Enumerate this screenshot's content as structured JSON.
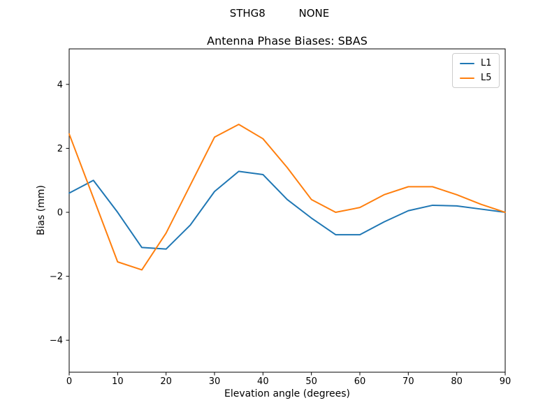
{
  "figure": {
    "suptitle": "STHG8          NONE"
  },
  "chart_data": {
    "type": "line",
    "title": "Antenna Phase Biases: SBAS",
    "xlabel": "Elevation angle (degrees)",
    "ylabel": "Bias (mm)",
    "xlim": [
      0,
      90
    ],
    "ylim": [
      -5,
      5.11
    ],
    "x_ticks": [
      0,
      10,
      20,
      30,
      40,
      50,
      60,
      70,
      80,
      90
    ],
    "y_ticks": [
      -4,
      -2,
      0,
      2,
      4
    ],
    "grid": false,
    "legend_position": "upper right",
    "x": [
      0,
      5,
      10,
      15,
      20,
      25,
      30,
      35,
      40,
      45,
      50,
      55,
      60,
      65,
      70,
      75,
      80,
      85,
      90
    ],
    "series": [
      {
        "name": "L1",
        "color": "#1f77b4",
        "values": [
          0.6,
          1.0,
          0.0,
          -1.1,
          -1.15,
          -0.4,
          0.65,
          1.28,
          1.18,
          0.4,
          -0.18,
          -0.7,
          -0.7,
          -0.3,
          0.05,
          0.22,
          0.2,
          0.1,
          0.0
        ]
      },
      {
        "name": "L5",
        "color": "#ff7f0e",
        "values": [
          2.45,
          0.45,
          -1.55,
          -1.8,
          -0.65,
          0.85,
          2.35,
          2.75,
          2.3,
          1.4,
          0.4,
          0.0,
          0.15,
          0.55,
          0.8,
          0.8,
          0.55,
          0.25,
          0.0
        ]
      }
    ]
  }
}
